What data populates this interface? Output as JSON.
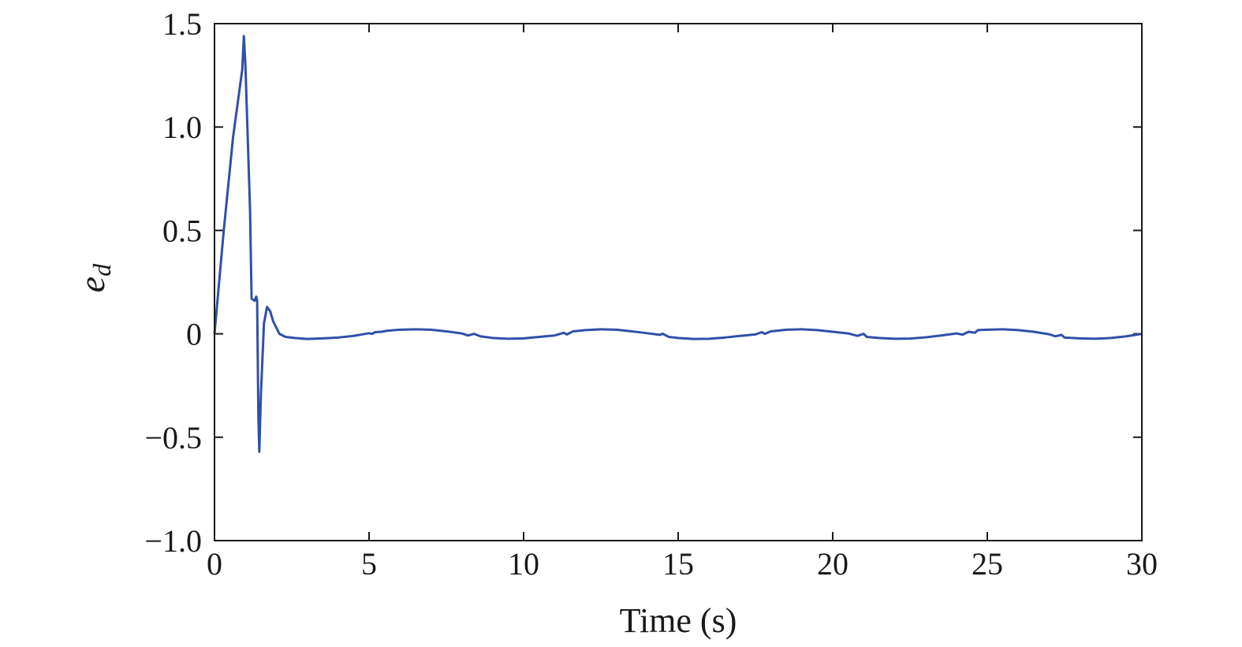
{
  "chart_data": {
    "type": "line",
    "title": "",
    "xlabel": "Time (s)",
    "ylabel": "e",
    "ylabel_subscript": "d",
    "xlim": [
      0,
      30
    ],
    "ylim": [
      -1.0,
      1.5
    ],
    "xticks": [
      0,
      5,
      10,
      15,
      20,
      25,
      30
    ],
    "xtick_labels": [
      "0",
      "5",
      "10",
      "15",
      "20",
      "25",
      "30"
    ],
    "yticks": [
      -1.0,
      -0.5,
      0,
      0.5,
      1.0,
      1.5
    ],
    "ytick_labels": [
      "−1.0",
      "−0.5",
      "0",
      "0.5",
      "1.0",
      "1.5"
    ],
    "grid": false,
    "series": [
      {
        "color": "#3050a8",
        "points": [
          [
            0,
            0
          ],
          [
            0.3,
            0.5
          ],
          [
            0.6,
            0.95
          ],
          [
            0.9,
            1.28
          ],
          [
            0.95,
            1.44
          ],
          [
            1.0,
            1.3
          ],
          [
            1.15,
            0.6
          ],
          [
            1.2,
            0.17
          ],
          [
            1.3,
            0.16
          ],
          [
            1.35,
            0.18
          ],
          [
            1.38,
            0.16
          ],
          [
            1.42,
            -0.4
          ],
          [
            1.45,
            -0.57
          ],
          [
            1.5,
            -0.3
          ],
          [
            1.6,
            0.05
          ],
          [
            1.7,
            0.13
          ],
          [
            1.8,
            0.11
          ],
          [
            1.9,
            0.06
          ],
          [
            2.0,
            0.03
          ],
          [
            2.1,
            0.0
          ],
          [
            2.3,
            -0.015
          ],
          [
            2.6,
            -0.02
          ],
          [
            3.0,
            -0.025
          ],
          [
            3.5,
            -0.022
          ],
          [
            4.0,
            -0.018
          ],
          [
            4.5,
            -0.01
          ],
          [
            5.0,
            0.003
          ],
          [
            5.1,
            0.0
          ],
          [
            5.2,
            0.008
          ],
          [
            5.4,
            0.01
          ],
          [
            5.6,
            0.015
          ],
          [
            6.0,
            0.02
          ],
          [
            6.5,
            0.022
          ],
          [
            7.0,
            0.02
          ],
          [
            7.5,
            0.012
          ],
          [
            8.0,
            0.002
          ],
          [
            8.2,
            -0.008
          ],
          [
            8.4,
            0.0
          ],
          [
            8.6,
            -0.012
          ],
          [
            9.0,
            -0.02
          ],
          [
            9.5,
            -0.024
          ],
          [
            10.0,
            -0.022
          ],
          [
            10.5,
            -0.015
          ],
          [
            11.0,
            -0.008
          ],
          [
            11.3,
            0.005
          ],
          [
            11.4,
            -0.003
          ],
          [
            11.6,
            0.012
          ],
          [
            12.0,
            0.018
          ],
          [
            12.5,
            0.022
          ],
          [
            13.0,
            0.02
          ],
          [
            13.5,
            0.012
          ],
          [
            14.0,
            0.003
          ],
          [
            14.4,
            -0.005
          ],
          [
            14.5,
            0.0
          ],
          [
            14.7,
            -0.015
          ],
          [
            15.0,
            -0.02
          ],
          [
            15.5,
            -0.025
          ],
          [
            16.0,
            -0.024
          ],
          [
            16.5,
            -0.018
          ],
          [
            17.0,
            -0.01
          ],
          [
            17.5,
            -0.003
          ],
          [
            17.7,
            0.008
          ],
          [
            17.8,
            0.0
          ],
          [
            18.0,
            0.012
          ],
          [
            18.5,
            0.02
          ],
          [
            19.0,
            0.022
          ],
          [
            19.5,
            0.018
          ],
          [
            20.0,
            0.01
          ],
          [
            20.5,
            0.002
          ],
          [
            20.8,
            -0.01
          ],
          [
            21.0,
            0.0
          ],
          [
            21.1,
            -0.015
          ],
          [
            21.5,
            -0.02
          ],
          [
            22.0,
            -0.024
          ],
          [
            22.5,
            -0.023
          ],
          [
            23.0,
            -0.017
          ],
          [
            23.5,
            -0.008
          ],
          [
            24.0,
            0.002
          ],
          [
            24.2,
            -0.004
          ],
          [
            24.4,
            0.01
          ],
          [
            24.6,
            0.005
          ],
          [
            24.7,
            0.018
          ],
          [
            25.0,
            0.02
          ],
          [
            25.5,
            0.022
          ],
          [
            26.0,
            0.018
          ],
          [
            26.5,
            0.01
          ],
          [
            27.0,
            -0.002
          ],
          [
            27.2,
            -0.012
          ],
          [
            27.4,
            -0.005
          ],
          [
            27.5,
            -0.018
          ],
          [
            28.0,
            -0.022
          ],
          [
            28.5,
            -0.024
          ],
          [
            29.0,
            -0.02
          ],
          [
            29.5,
            -0.012
          ],
          [
            30.0,
            0.0
          ]
        ]
      }
    ]
  }
}
